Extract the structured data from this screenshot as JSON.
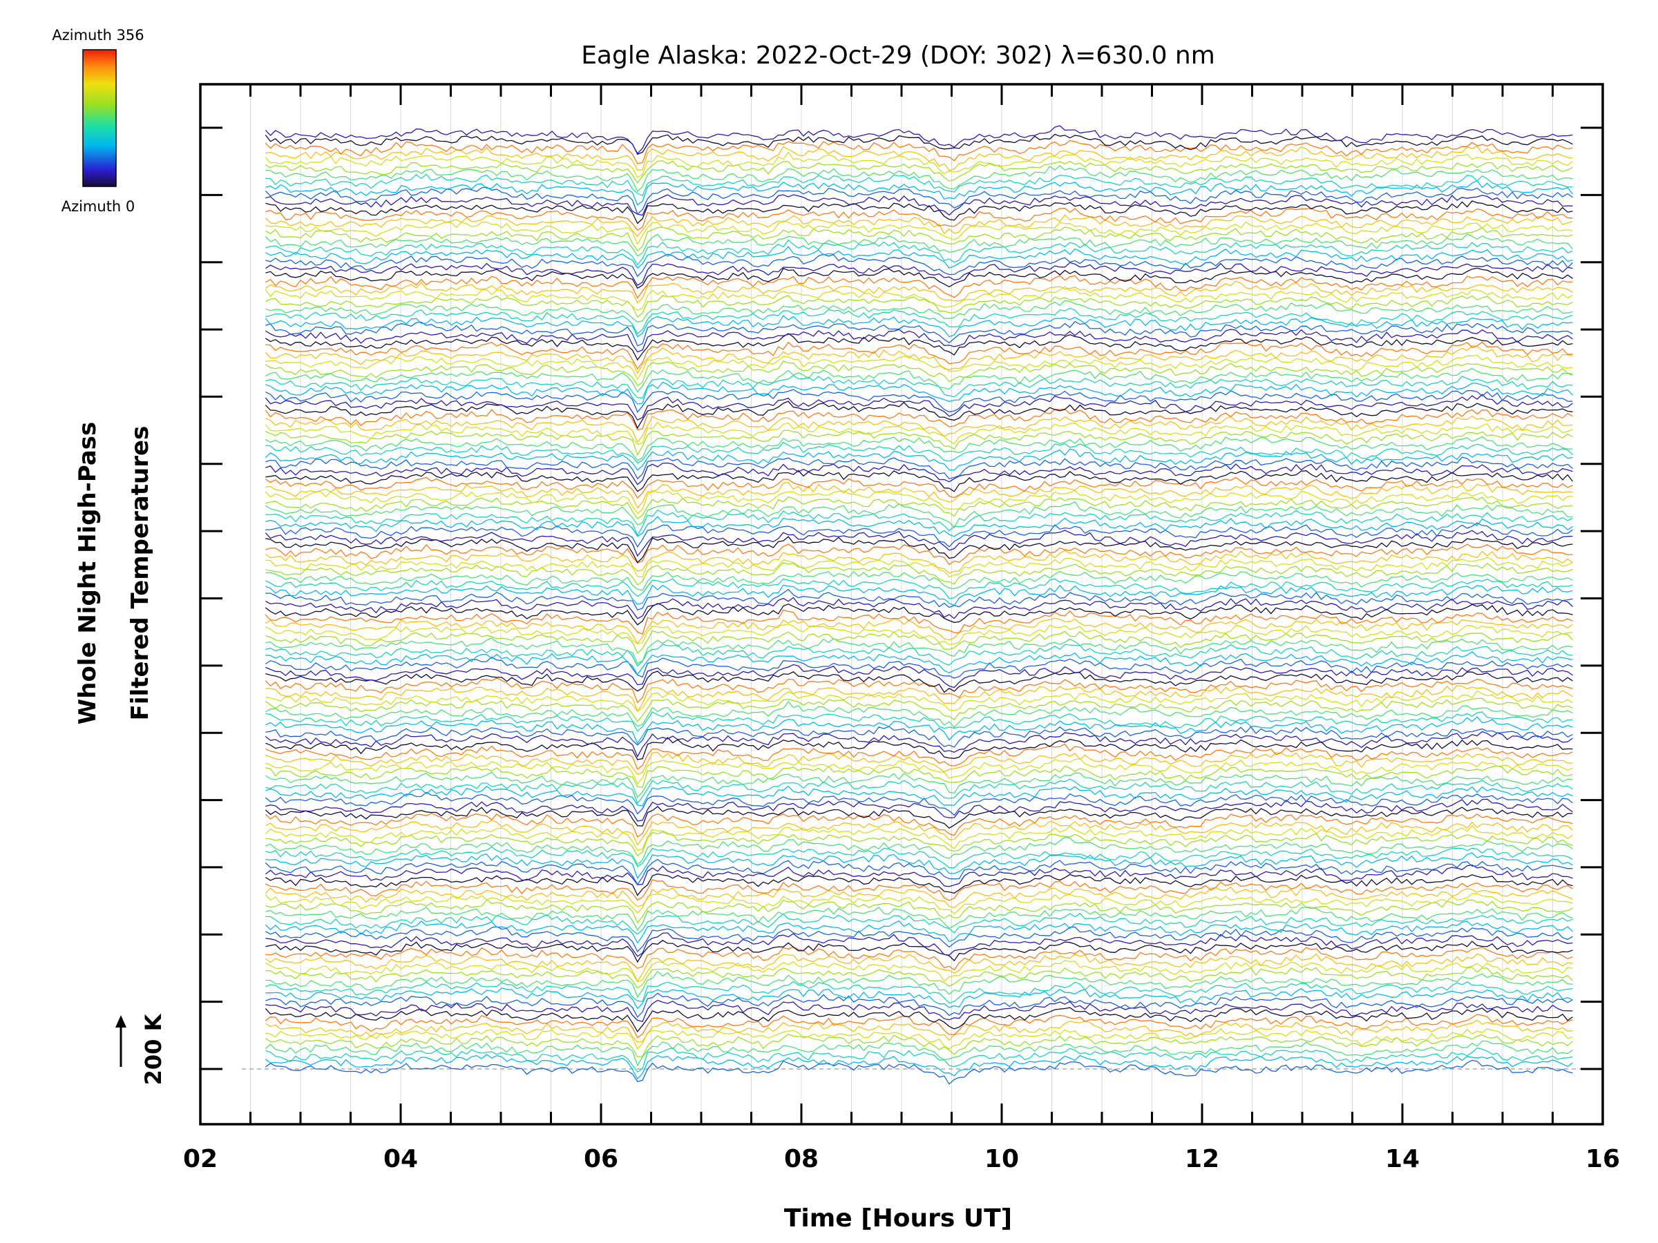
{
  "chart_data": {
    "type": "line",
    "title": "Eagle Alaska: 2022-Oct-29 (DOY: 302) λ=630.0 nm",
    "xlabel": "Time [Hours UT]",
    "ylabel_line1": "Whole Night High-Pass",
    "ylabel_line2": "Filtered Temperatures",
    "scale_label": "200 K",
    "xlim": [
      2,
      16
    ],
    "x_ticks": [
      "02",
      "04",
      "06",
      "08",
      "10",
      "12",
      "14",
      "16"
    ],
    "x_tick_values": [
      2,
      4,
      6,
      8,
      10,
      12,
      14,
      16
    ],
    "x_start": 2.65,
    "x_end": 15.7,
    "colorbar": {
      "label_top": "Azimuth 356",
      "label_bottom": "Azimuth 0",
      "min": 0,
      "max": 356
    },
    "series_count": 140,
    "groups": 14,
    "group_spacing_ticks": 1,
    "common_features": [
      {
        "x": 6.38,
        "depth": -28,
        "note": "sharp dip present in all traces"
      },
      {
        "x": 7.85,
        "depth": 14
      },
      {
        "x": 9.5,
        "depth": -12
      },
      {
        "x": 5.45,
        "depth": 8
      }
    ],
    "colors": {
      "axis": "#000000",
      "grid": "#d9d9d9",
      "baseline": "#aaaaaa"
    }
  }
}
